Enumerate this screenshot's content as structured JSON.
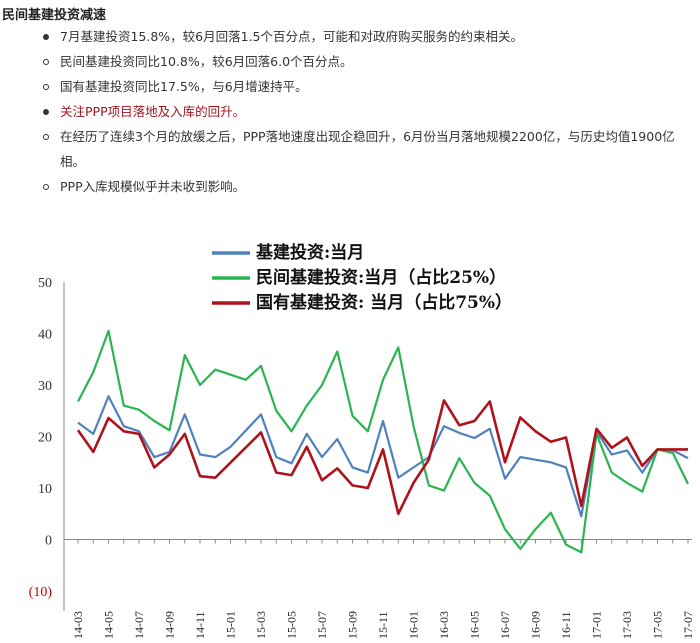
{
  "heading": "民间基建投资减速",
  "bullets": [
    {
      "text": "7月基建投资15.8%，较6月回落1.5个百分点，可能和对政府购买服务的约束相关。",
      "style": "filled",
      "color": "normal"
    },
    {
      "text": "民间基建投资同比10.8%，较6月回落6.0个百分点。",
      "style": "hollow",
      "color": "normal"
    },
    {
      "text": "国有基建投资同比17.5%，与6月增速持平。",
      "style": "hollow",
      "color": "normal"
    },
    {
      "text": "关注PPP项目落地及入库的回升。",
      "style": "filled",
      "color": "red"
    },
    {
      "text": "在经历了连续3个月的放缓之后，PPP落地速度出现企稳回升，6月份当月落地规模2200亿，与历史均值1900亿相。",
      "style": "hollow",
      "color": "normal"
    },
    {
      "text": "PPP入库规模似乎并未收到影响。",
      "style": "hollow",
      "color": "normal"
    }
  ],
  "colors": {
    "series1": "#4f81bd",
    "series2": "#2ab550",
    "series3": "#b0121b",
    "negative_tick": "#c00000",
    "axis": "#888888"
  },
  "chart_data": {
    "type": "line",
    "y_ticks": [
      "50",
      "40",
      "30",
      "20",
      "10",
      "0",
      "(10)"
    ],
    "ylim": [
      -10,
      50
    ],
    "x_labels": [
      "14-03",
      "14-05",
      "14-07",
      "14-09",
      "14-11",
      "15-01",
      "15-03",
      "15-05",
      "15-07",
      "15-09",
      "15-11",
      "16-01",
      "16-03",
      "16-05",
      "16-07",
      "16-09",
      "16-11",
      "17-01",
      "17-03",
      "17-05",
      "17-07"
    ],
    "x": [
      "14-03",
      "14-04",
      "14-05",
      "14-06",
      "14-07",
      "14-08",
      "14-09",
      "14-10",
      "14-11",
      "14-12",
      "15-01",
      "15-02",
      "15-03",
      "15-04",
      "15-05",
      "15-06",
      "15-07",
      "15-08",
      "15-09",
      "15-10",
      "15-11",
      "15-12",
      "16-01",
      "16-02",
      "16-03",
      "16-04",
      "16-05",
      "16-06",
      "16-07",
      "16-08",
      "16-09",
      "16-10",
      "16-11",
      "16-12",
      "17-01",
      "17-02",
      "17-03",
      "17-04",
      "17-05",
      "17-06",
      "17-07"
    ],
    "legend": "top-center",
    "grid": false,
    "series": [
      {
        "name": "基建投资:当月",
        "color": "#4f81bd",
        "values": [
          22.7,
          20.5,
          27.8,
          22.0,
          21.0,
          16.0,
          17.0,
          24.3,
          16.5,
          16.0,
          18.0,
          null,
          24.3,
          16.0,
          14.8,
          20.5,
          16.0,
          19.5,
          14.0,
          13.0,
          23.0,
          12.0,
          14.0,
          16.0,
          22.0,
          20.7,
          19.7,
          21.5,
          11.8,
          16.0,
          15.5,
          15.0,
          14.0,
          4.5,
          21.0,
          16.5,
          17.3,
          13.0,
          17.5,
          17.3,
          15.8
        ]
      },
      {
        "name": "民间基建投资:当月（占比25%）",
        "color": "#2ab550",
        "values": [
          26.8,
          32.5,
          40.5,
          26.0,
          25.2,
          23.0,
          21.2,
          35.8,
          30.0,
          33.0,
          null,
          31.0,
          33.7,
          25.0,
          21.0,
          26.0,
          30.0,
          36.5,
          24.0,
          21.0,
          31.0,
          37.3,
          22.0,
          10.5,
          9.5,
          15.8,
          11.0,
          8.5,
          2.0,
          -1.8,
          2.0,
          5.2,
          -1.0,
          -2.5,
          20.5,
          13.0,
          11.0,
          9.3,
          17.5,
          16.8,
          10.8
        ]
      },
      {
        "name": "国有基建投资: 当月（占比75%）",
        "color": "#b0121b",
        "values": [
          21.2,
          17.0,
          23.6,
          21.0,
          20.5,
          14.0,
          16.5,
          20.5,
          12.3,
          12.0,
          null,
          null,
          20.8,
          13.0,
          12.5,
          18.0,
          11.5,
          13.8,
          10.5,
          10.0,
          17.5,
          5.0,
          11.0,
          15.5,
          27.0,
          22.2,
          23.0,
          26.8,
          15.0,
          23.7,
          21.0,
          19.0,
          19.8,
          6.5,
          21.5,
          17.8,
          19.8,
          14.3,
          17.5,
          17.5,
          17.5
        ]
      }
    ]
  }
}
